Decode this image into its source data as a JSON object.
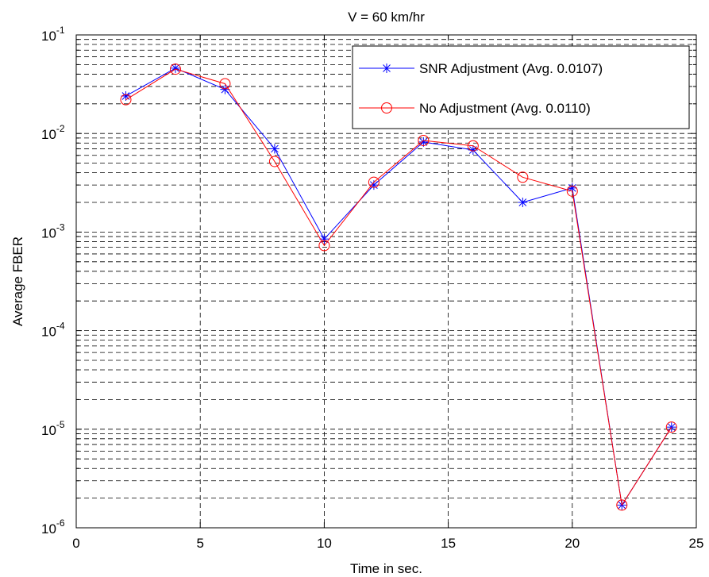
{
  "chart_data": {
    "type": "line",
    "title": "V = 60 km/hr",
    "xlabel": "Time in sec.",
    "ylabel": "Average FBER",
    "xlim": [
      0,
      25
    ],
    "ylim": [
      1e-06,
      0.1
    ],
    "yscale": "log",
    "grid": true,
    "legend_position": "top-right",
    "x_ticks": [
      "0",
      "5",
      "10",
      "15",
      "20",
      "25"
    ],
    "y_ticks": [
      {
        "base": "10",
        "exp": "-6"
      },
      {
        "base": "10",
        "exp": "-5"
      },
      {
        "base": "10",
        "exp": "-4"
      },
      {
        "base": "10",
        "exp": "-3"
      },
      {
        "base": "10",
        "exp": "-2"
      },
      {
        "base": "10",
        "exp": "-1"
      }
    ],
    "x": [
      2,
      4,
      6,
      8,
      10,
      12,
      14,
      16,
      18,
      20,
      22,
      24
    ],
    "series": [
      {
        "name": "SNR Adjustment (Avg. 0.0107)",
        "color": "#0000ff",
        "marker": "asterisk",
        "values": [
          0.024,
          0.046,
          0.028,
          0.007,
          0.00085,
          0.003,
          0.0082,
          0.0068,
          0.002,
          0.0028,
          1.7e-06,
          1.05e-05
        ]
      },
      {
        "name": "No Adjustment (Avg. 0.0110)",
        "color": "#ff0000",
        "marker": "circle",
        "values": [
          0.022,
          0.045,
          0.032,
          0.0052,
          0.00073,
          0.0032,
          0.0085,
          0.0075,
          0.0036,
          0.0026,
          1.7e-06,
          1.05e-05
        ]
      }
    ]
  }
}
